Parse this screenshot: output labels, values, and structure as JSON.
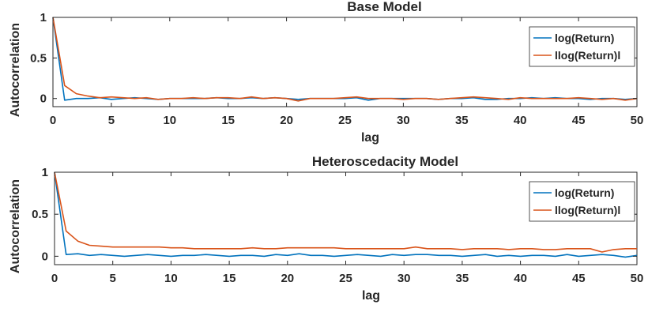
{
  "chart_data": [
    {
      "type": "line",
      "title": "Base Model",
      "xlabel": "lag",
      "ylabel": "Autocorrelation",
      "xlim": [
        0,
        50
      ],
      "ylim": [
        -0.1,
        1
      ],
      "xticks": [
        0,
        5,
        10,
        15,
        20,
        25,
        30,
        35,
        40,
        45,
        50
      ],
      "yticks": [
        0,
        0.5,
        1
      ],
      "grid": false,
      "legend": "top-right",
      "x": [
        0,
        1,
        2,
        3,
        4,
        5,
        6,
        7,
        8,
        9,
        10,
        11,
        12,
        13,
        14,
        15,
        16,
        17,
        18,
        19,
        20,
        21,
        22,
        23,
        24,
        25,
        26,
        27,
        28,
        29,
        30,
        31,
        32,
        33,
        34,
        35,
        36,
        37,
        38,
        39,
        40,
        41,
        42,
        43,
        44,
        45,
        46,
        47,
        48,
        49,
        50
      ],
      "series": [
        {
          "name": "log(Return)",
          "color": "#0072BD",
          "values": [
            1.0,
            -0.02,
            0.0,
            0.0,
            0.01,
            -0.01,
            0.0,
            0.01,
            0.0,
            -0.01,
            0.0,
            0.0,
            0.0,
            0.0,
            0.01,
            0.0,
            0.0,
            0.01,
            0.0,
            0.01,
            0.0,
            -0.01,
            0.0,
            0.0,
            0.0,
            0.0,
            0.01,
            -0.02,
            0.0,
            0.0,
            0.0,
            0.0,
            0.0,
            -0.01,
            0.0,
            0.0,
            0.01,
            -0.01,
            -0.01,
            0.0,
            0.0,
            0.01,
            0.0,
            0.01,
            0.0,
            0.0,
            -0.01,
            0.0,
            0.0,
            -0.01,
            0.0
          ]
        },
        {
          "name": "llog(Return)l",
          "color": "#D95319",
          "values": [
            1.0,
            0.16,
            0.06,
            0.03,
            0.01,
            0.02,
            0.01,
            0.0,
            0.01,
            -0.01,
            0.0,
            0.0,
            0.01,
            0.0,
            0.01,
            0.01,
            0.0,
            0.02,
            0.0,
            0.01,
            0.0,
            -0.03,
            0.0,
            0.0,
            0.0,
            0.01,
            0.02,
            0.0,
            0.0,
            0.0,
            -0.01,
            0.0,
            0.0,
            -0.01,
            0.0,
            0.01,
            0.02,
            0.01,
            0.0,
            -0.01,
            0.01,
            0.0,
            0.0,
            0.0,
            0.0,
            0.01,
            0.0,
            -0.01,
            0.0,
            -0.02,
            0.0
          ]
        }
      ]
    },
    {
      "type": "line",
      "title": "Heteroscedacity Model",
      "xlabel": "lag",
      "ylabel": "Autocorrelation",
      "xlim": [
        0,
        50
      ],
      "ylim": [
        -0.1,
        1
      ],
      "xticks": [
        0,
        5,
        10,
        15,
        20,
        25,
        30,
        35,
        40,
        45,
        50
      ],
      "yticks": [
        0,
        0.5,
        1
      ],
      "grid": false,
      "legend": "top-right",
      "x": [
        0,
        1,
        2,
        3,
        4,
        5,
        6,
        7,
        8,
        9,
        10,
        11,
        12,
        13,
        14,
        15,
        16,
        17,
        18,
        19,
        20,
        21,
        22,
        23,
        24,
        25,
        26,
        27,
        28,
        29,
        30,
        31,
        32,
        33,
        34,
        35,
        36,
        37,
        38,
        39,
        40,
        41,
        42,
        43,
        44,
        45,
        46,
        47,
        48,
        49,
        50
      ],
      "series": [
        {
          "name": "log(Return)",
          "color": "#0072BD",
          "values": [
            1.0,
            0.02,
            0.03,
            0.01,
            0.02,
            0.01,
            0.0,
            0.01,
            0.02,
            0.01,
            0.0,
            0.01,
            0.01,
            0.02,
            0.01,
            0.0,
            0.01,
            0.01,
            0.0,
            0.02,
            0.01,
            0.03,
            0.01,
            0.01,
            0.0,
            0.01,
            0.02,
            0.01,
            0.0,
            0.02,
            0.01,
            0.02,
            0.02,
            0.01,
            0.01,
            0.0,
            0.01,
            0.02,
            0.0,
            0.01,
            0.0,
            0.01,
            0.01,
            0.0,
            0.02,
            0.0,
            0.01,
            0.02,
            0.01,
            -0.01,
            0.01
          ]
        },
        {
          "name": "llog(Return)l",
          "color": "#D95319",
          "values": [
            1.0,
            0.3,
            0.18,
            0.13,
            0.12,
            0.11,
            0.11,
            0.11,
            0.11,
            0.11,
            0.1,
            0.1,
            0.09,
            0.09,
            0.09,
            0.09,
            0.09,
            0.1,
            0.09,
            0.09,
            0.1,
            0.1,
            0.1,
            0.1,
            0.1,
            0.09,
            0.09,
            0.09,
            0.09,
            0.09,
            0.09,
            0.11,
            0.09,
            0.09,
            0.09,
            0.08,
            0.09,
            0.09,
            0.09,
            0.08,
            0.09,
            0.09,
            0.08,
            0.08,
            0.09,
            0.09,
            0.09,
            0.05,
            0.08,
            0.09,
            0.09
          ]
        }
      ]
    }
  ]
}
